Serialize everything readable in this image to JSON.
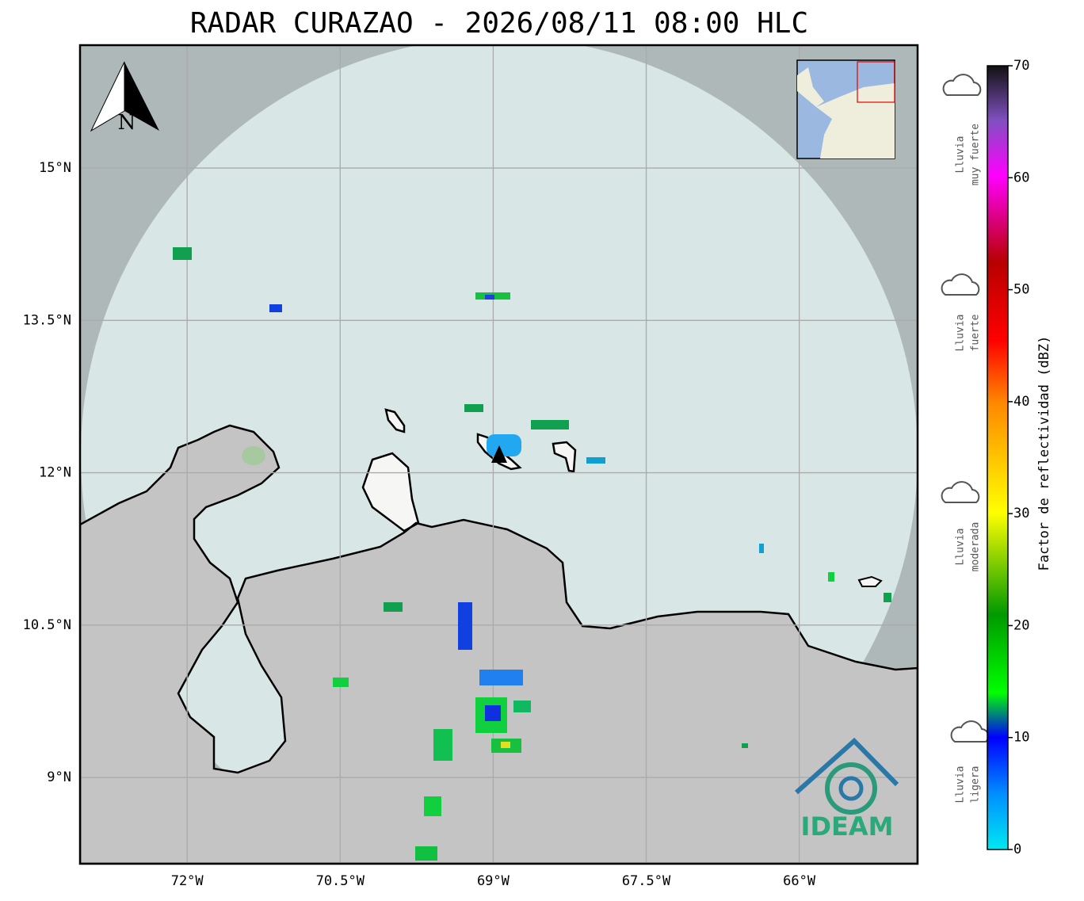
{
  "title": "RADAR CURAZAO - 2026/08/11 08:00 HLC",
  "map": {
    "xlim": [
      -73.05,
      -64.84
    ],
    "ylim": [
      8.15,
      16.21
    ],
    "xticks": [
      {
        "value": -72,
        "label": "72°W"
      },
      {
        "value": -70.5,
        "label": "70.5°W"
      },
      {
        "value": -69,
        "label": "69°W"
      },
      {
        "value": -67.5,
        "label": "67.5°W"
      },
      {
        "value": -66,
        "label": "66°W"
      }
    ],
    "yticks": [
      {
        "value": 9,
        "label": "9°N"
      },
      {
        "value": 10.5,
        "label": "10.5°N"
      },
      {
        "value": 12,
        "label": "12°N"
      },
      {
        "value": 13.5,
        "label": "13.5°N"
      },
      {
        "value": 15,
        "label": "15°N"
      }
    ],
    "grid": true
  },
  "north_label": "N",
  "colorbar": {
    "label": "Factor de reflectividad (dBZ)",
    "ylim": [
      0,
      70
    ],
    "yticks": [
      0,
      10,
      20,
      30,
      40,
      50,
      60,
      70
    ]
  },
  "legend": [
    {
      "lines": [
        "Lluvia",
        "muy fuerte"
      ]
    },
    {
      "lines": [
        "Lluvia",
        "fuerte"
      ]
    },
    {
      "lines": [
        "Lluvia",
        "moderada"
      ]
    },
    {
      "lines": [
        "Lluvia",
        "ligera"
      ]
    }
  ],
  "logo": "IDEAM"
}
